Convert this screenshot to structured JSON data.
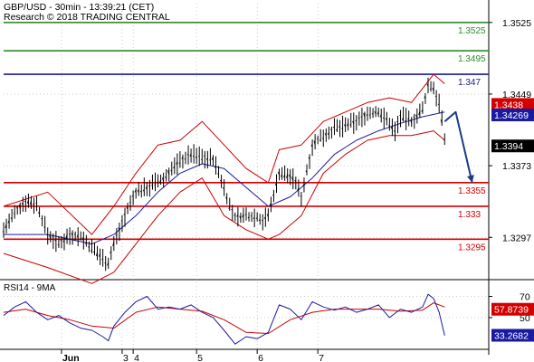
{
  "header": {
    "title": "GBP/USD - 30min - 13:39:21 (CET)",
    "research": "Research © 2018 TRADING CENTRAL"
  },
  "rsi_panel": {
    "title": "RSI14 - 9MA"
  },
  "colors": {
    "background": "#ffffff",
    "price": "#000000",
    "bollinger": "#cc0000",
    "moving_average": "#1a1aa0",
    "resistance": "#2e8b2e",
    "pivot": "#1a1aa0",
    "support": "#d40000",
    "arrow": "#1a3a8c",
    "rsi": "#1a1aa0",
    "rsi_ma": "#cc0000",
    "grid": "#aaaaaa"
  },
  "chart_data": [
    {
      "type": "candlestick",
      "title": "GBP/USD - 30min - 13:39:21 (CET)",
      "ylim": [
        1.3255,
        1.3545
      ],
      "yticks": [
        "1.3525",
        "1.3449",
        "1.3373",
        "1.3297"
      ],
      "xticks": [
        "Jun",
        "3",
        "4",
        "5",
        "6",
        "7"
      ],
      "price_path": [
        [
          0,
          1.3305
        ],
        [
          2,
          1.3322
        ],
        [
          4,
          1.3336
        ],
        [
          6,
          1.3332
        ],
        [
          8,
          1.33
        ],
        [
          10,
          1.329
        ],
        [
          12,
          1.33
        ],
        [
          14,
          1.3298
        ],
        [
          16,
          1.3285
        ],
        [
          18,
          1.3275
        ],
        [
          19,
          1.327
        ],
        [
          20,
          1.329
        ],
        [
          22,
          1.332
        ],
        [
          24,
          1.3345
        ],
        [
          26,
          1.335
        ],
        [
          28,
          1.3356
        ],
        [
          29,
          1.3358
        ],
        [
          30,
          1.3366
        ],
        [
          32,
          1.3378
        ],
        [
          34,
          1.3385
        ],
        [
          36,
          1.3382
        ],
        [
          38,
          1.338
        ],
        [
          40,
          1.335
        ],
        [
          41,
          1.333
        ],
        [
          42,
          1.3318
        ],
        [
          44,
          1.332
        ],
        [
          46,
          1.3319
        ],
        [
          47,
          1.3315
        ],
        [
          48,
          1.332
        ],
        [
          50,
          1.3365
        ],
        [
          52,
          1.3362
        ],
        [
          53,
          1.3355
        ],
        [
          54,
          1.334
        ],
        [
          56,
          1.3395
        ],
        [
          58,
          1.3405
        ],
        [
          60,
          1.3412
        ],
        [
          62,
          1.3415
        ],
        [
          64,
          1.342
        ],
        [
          66,
          1.3428
        ],
        [
          68,
          1.343
        ],
        [
          70,
          1.3418
        ],
        [
          71,
          1.341
        ],
        [
          72,
          1.3425
        ],
        [
          74,
          1.342
        ],
        [
          76,
          1.3432
        ],
        [
          77,
          1.3458
        ],
        [
          78,
          1.3455
        ],
        [
          79,
          1.344
        ],
        [
          80,
          1.34
        ]
      ],
      "bollinger_upper": [
        [
          0,
          1.333
        ],
        [
          8,
          1.3345
        ],
        [
          16,
          1.33
        ],
        [
          20,
          1.333
        ],
        [
          24,
          1.3365
        ],
        [
          28,
          1.3395
        ],
        [
          32,
          1.34
        ],
        [
          36,
          1.342
        ],
        [
          40,
          1.3395
        ],
        [
          44,
          1.337
        ],
        [
          48,
          1.3355
        ],
        [
          50,
          1.339
        ],
        [
          54,
          1.3395
        ],
        [
          58,
          1.342
        ],
        [
          62,
          1.343
        ],
        [
          66,
          1.344
        ],
        [
          70,
          1.3445
        ],
        [
          74,
          1.344
        ],
        [
          78,
          1.347
        ],
        [
          80,
          1.346
        ]
      ],
      "bollinger_lower": [
        [
          0,
          1.328
        ],
        [
          8,
          1.3265
        ],
        [
          16,
          1.3248
        ],
        [
          20,
          1.326
        ],
        [
          24,
          1.329
        ],
        [
          28,
          1.332
        ],
        [
          32,
          1.3345
        ],
        [
          36,
          1.336
        ],
        [
          40,
          1.332
        ],
        [
          44,
          1.3305
        ],
        [
          48,
          1.3295
        ],
        [
          50,
          1.33
        ],
        [
          54,
          1.332
        ],
        [
          58,
          1.3365
        ],
        [
          62,
          1.3385
        ],
        [
          66,
          1.34
        ],
        [
          70,
          1.3405
        ],
        [
          74,
          1.3405
        ],
        [
          78,
          1.341
        ],
        [
          80,
          1.34
        ]
      ],
      "moving_average": [
        [
          0,
          1.33
        ],
        [
          8,
          1.33
        ],
        [
          16,
          1.329
        ],
        [
          20,
          1.33
        ],
        [
          24,
          1.332
        ],
        [
          28,
          1.3345
        ],
        [
          32,
          1.3365
        ],
        [
          36,
          1.3375
        ],
        [
          40,
          1.337
        ],
        [
          44,
          1.335
        ],
        [
          48,
          1.333
        ],
        [
          52,
          1.334
        ],
        [
          56,
          1.336
        ],
        [
          60,
          1.3385
        ],
        [
          64,
          1.34
        ],
        [
          68,
          1.341
        ],
        [
          72,
          1.3418
        ],
        [
          76,
          1.3425
        ],
        [
          80,
          1.343
        ]
      ],
      "levels": [
        {
          "label": "1.3525",
          "value": 1.3525,
          "kind": "resistance"
        },
        {
          "label": "1.3495",
          "value": 1.3495,
          "kind": "resistance"
        },
        {
          "label": "1.347",
          "value": 1.347,
          "kind": "pivot"
        },
        {
          "label": "1.3355",
          "value": 1.3355,
          "kind": "support"
        },
        {
          "label": "1.333",
          "value": 1.333,
          "kind": "support"
        },
        {
          "label": "1.3295",
          "value": 1.3295,
          "kind": "support"
        }
      ],
      "price_tags": [
        {
          "label": "1.3438",
          "value": 1.3438,
          "kind": "red"
        },
        {
          "label": "1.34269",
          "value": 1.34269,
          "kind": "blue"
        },
        {
          "label": "1.3394",
          "value": 1.3394,
          "kind": "black"
        }
      ],
      "forecast_arrow": [
        [
          80,
          1.342
        ],
        [
          82,
          1.343
        ],
        [
          85,
          1.3355
        ]
      ]
    },
    {
      "type": "line",
      "title": "RSI14 - 9MA",
      "ylim": [
        20,
        85
      ],
      "yticks": [
        "70",
        "50"
      ],
      "series": [
        {
          "name": "RSI14",
          "points": [
            [
              0,
              52
            ],
            [
              2,
              60
            ],
            [
              4,
              65
            ],
            [
              6,
              55
            ],
            [
              8,
              48
            ],
            [
              10,
              52
            ],
            [
              12,
              45
            ],
            [
              14,
              40
            ],
            [
              16,
              38
            ],
            [
              18,
              32
            ],
            [
              19,
              28
            ],
            [
              20,
              42
            ],
            [
              22,
              55
            ],
            [
              24,
              65
            ],
            [
              26,
              70
            ],
            [
              28,
              58
            ],
            [
              30,
              60
            ],
            [
              32,
              58
            ],
            [
              34,
              62
            ],
            [
              36,
              55
            ],
            [
              38,
              50
            ],
            [
              40,
              38
            ],
            [
              42,
              25
            ],
            [
              44,
              32
            ],
            [
              46,
              30
            ],
            [
              48,
              36
            ],
            [
              50,
              62
            ],
            [
              52,
              58
            ],
            [
              54,
              48
            ],
            [
              56,
              65
            ],
            [
              58,
              60
            ],
            [
              60,
              57
            ],
            [
              62,
              60
            ],
            [
              64,
              55
            ],
            [
              66,
              58
            ],
            [
              68,
              62
            ],
            [
              70,
              50
            ],
            [
              72,
              58
            ],
            [
              74,
              55
            ],
            [
              76,
              60
            ],
            [
              77,
              72
            ],
            [
              78,
              68
            ],
            [
              79,
              55
            ],
            [
              80,
              33
            ]
          ]
        },
        {
          "name": "9MA",
          "points": [
            [
              0,
              55
            ],
            [
              4,
              58
            ],
            [
              8,
              52
            ],
            [
              12,
              48
            ],
            [
              16,
              42
            ],
            [
              20,
              40
            ],
            [
              24,
              55
            ],
            [
              28,
              60
            ],
            [
              32,
              58
            ],
            [
              36,
              56
            ],
            [
              40,
              48
            ],
            [
              44,
              36
            ],
            [
              48,
              35
            ],
            [
              52,
              48
            ],
            [
              56,
              55
            ],
            [
              60,
              58
            ],
            [
              64,
              58
            ],
            [
              68,
              58
            ],
            [
              72,
              56
            ],
            [
              76,
              57
            ],
            [
              78,
              64
            ],
            [
              80,
              60
            ]
          ]
        }
      ],
      "value_tags": [
        {
          "label": "57.8739",
          "value": 57.8739,
          "kind": "red"
        },
        {
          "label": "33.2682",
          "value": 33.2682,
          "kind": "blue"
        }
      ]
    }
  ]
}
